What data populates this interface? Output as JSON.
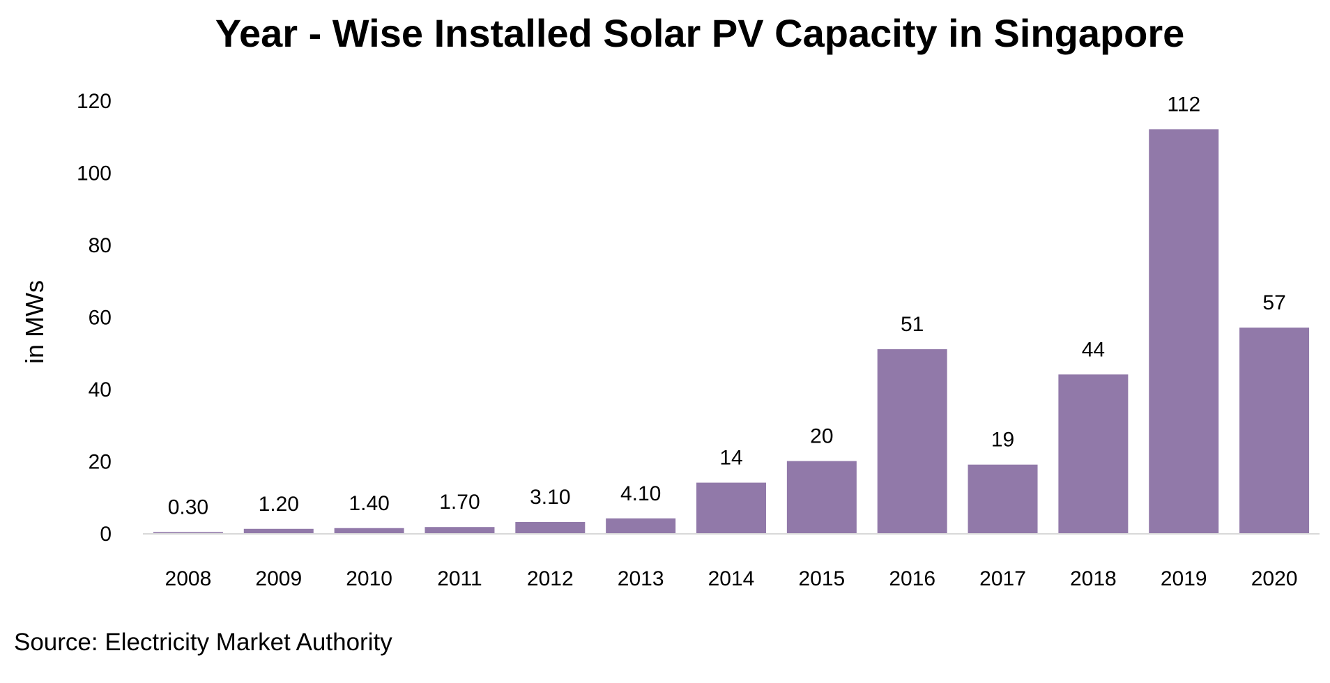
{
  "chart_data": {
    "type": "bar",
    "title": "Year - Wise Installed Solar PV Capacity in Singapore",
    "ylabel": "in MWs",
    "xlabel": "",
    "categories": [
      "2008",
      "2009",
      "2010",
      "2011",
      "2012",
      "2013",
      "2014",
      "2015",
      "2016",
      "2017",
      "2018",
      "2019",
      "2020"
    ],
    "values": [
      0.3,
      1.2,
      1.4,
      1.7,
      3.1,
      4.1,
      14,
      20,
      51,
      19,
      44,
      112,
      57
    ],
    "data_labels": [
      "0.30",
      "1.20",
      "1.40",
      "1.70",
      "3.10",
      "4.10",
      "14",
      "20",
      "51",
      "19",
      "44",
      "112",
      "57"
    ],
    "ylim": [
      0,
      120
    ],
    "yticks": [
      "0",
      "20",
      "40",
      "60",
      "80",
      "100",
      "120"
    ],
    "grid": false,
    "legend": "none",
    "bar_color": "#9179a9",
    "axis_color": "#d9d9d9"
  },
  "source": "Source: Electricity Market Authority"
}
